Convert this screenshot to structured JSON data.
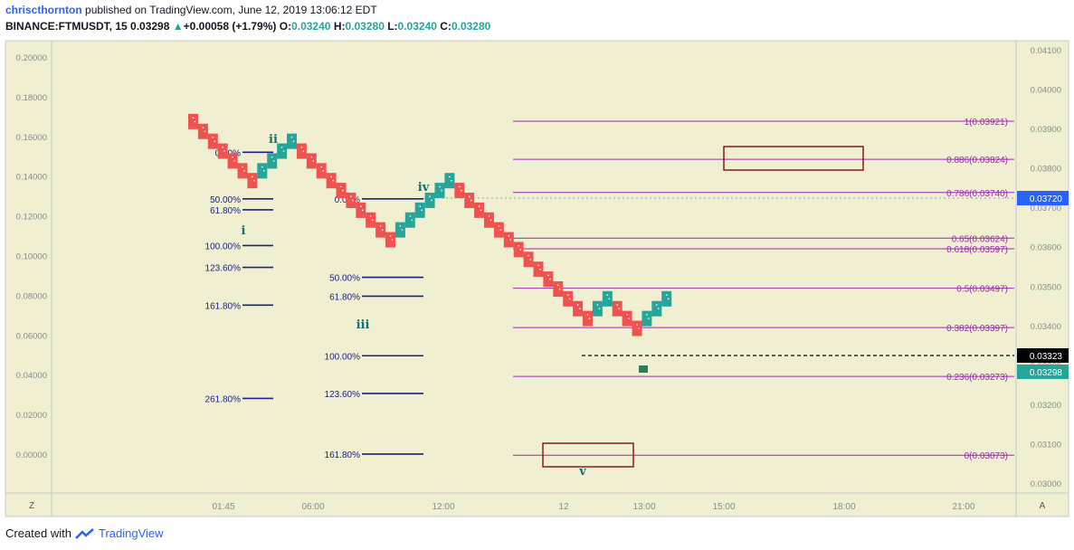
{
  "header": {
    "author": "chriscthornton",
    "published": "published on TradingView.com, June 12, 2019 13:06:12 EDT",
    "symbol": "BINANCE:FTMUSDT, 15",
    "last": "0.03298",
    "change": "+0.00058 (+1.79%)",
    "o_label": "O:",
    "o": "0.03240",
    "h_label": "H:",
    "h": "0.03280",
    "l_label": "L:",
    "l": "0.03240",
    "c_label": "C:",
    "c": "0.03280"
  },
  "footer": {
    "created_with": "Created with",
    "brand": "TradingView"
  },
  "colors": {
    "bg": "#f0efd2",
    "up": "#26a69a",
    "down": "#ef5350",
    "fib": "#9c27b0",
    "ind": "#1a237e",
    "box": "#8b1a1a",
    "wave": "#1b6e6e"
  },
  "chart_data": {
    "type": "renko",
    "symbol": "BINANCE:FTMUSDT",
    "interval": "15",
    "left_axis": {
      "ylim": [
        0.0,
        0.2
      ],
      "ticks": [
        "0.20000",
        "0.18000",
        "0.16000",
        "0.14000",
        "0.12000",
        "0.10000",
        "0.08000",
        "0.06000",
        "0.04000",
        "0.02000",
        "0.00000"
      ]
    },
    "right_axis": {
      "ylim": [
        0.03,
        0.041
      ],
      "ticks": [
        "0.04100",
        "0.04000",
        "0.03900",
        "0.03800",
        "0.03700",
        "0.03600",
        "0.03500",
        "0.03400",
        "0.03300",
        "0.03200",
        "0.03100",
        "0.03000"
      ]
    },
    "x_ticks": [
      "01:45",
      "06:00",
      "12:00",
      "12",
      "13:00",
      "15:00",
      "18:00",
      "21:00"
    ],
    "corner_labels": {
      "left": "Z",
      "right": "A"
    },
    "price_labels": [
      {
        "value": "0.03720",
        "color": "#2962ff"
      },
      {
        "value": "0.03323",
        "color": "#000000"
      },
      {
        "value": "0.03298",
        "color": "#26a69a"
      }
    ],
    "fib_levels": [
      {
        "label": "1(0.03921)",
        "price": 0.03921
      },
      {
        "label": "0.886(0.03824)",
        "price": 0.03824
      },
      {
        "label": "0.786(0.03740)",
        "price": 0.0374
      },
      {
        "label": "0.65(0.03624)",
        "price": 0.03624
      },
      {
        "label": "0.618(0.03597)",
        "price": 0.03597
      },
      {
        "label": "0.5(0.03497)",
        "price": 0.03497
      },
      {
        "label": "0.382(0.03397)",
        "price": 0.03397
      },
      {
        "label": "0.236(0.03273)",
        "price": 0.03273
      },
      {
        "label": "0(0.03073)",
        "price": 0.03073
      }
    ],
    "bricks": [
      {
        "d": "down",
        "p": 0.0392
      },
      {
        "d": "down",
        "p": 0.03895
      },
      {
        "d": "down",
        "p": 0.0387
      },
      {
        "d": "down",
        "p": 0.03845
      },
      {
        "d": "down",
        "p": 0.0382
      },
      {
        "d": "down",
        "p": 0.03795
      },
      {
        "d": "down",
        "p": 0.0377
      },
      {
        "d": "up",
        "p": 0.03795
      },
      {
        "d": "up",
        "p": 0.0382
      },
      {
        "d": "up",
        "p": 0.03845
      },
      {
        "d": "up",
        "p": 0.0387
      },
      {
        "d": "down",
        "p": 0.03845
      },
      {
        "d": "down",
        "p": 0.0382
      },
      {
        "d": "down",
        "p": 0.03795
      },
      {
        "d": "down",
        "p": 0.0377
      },
      {
        "d": "down",
        "p": 0.03745
      },
      {
        "d": "down",
        "p": 0.0372
      },
      {
        "d": "down",
        "p": 0.03695
      },
      {
        "d": "down",
        "p": 0.0367
      },
      {
        "d": "down",
        "p": 0.03645
      },
      {
        "d": "down",
        "p": 0.0362
      },
      {
        "d": "up",
        "p": 0.03645
      },
      {
        "d": "up",
        "p": 0.0367
      },
      {
        "d": "up",
        "p": 0.03695
      },
      {
        "d": "up",
        "p": 0.0372
      },
      {
        "d": "up",
        "p": 0.03745
      },
      {
        "d": "up",
        "p": 0.0377
      },
      {
        "d": "down",
        "p": 0.03745
      },
      {
        "d": "down",
        "p": 0.0372
      },
      {
        "d": "down",
        "p": 0.03695
      },
      {
        "d": "down",
        "p": 0.0367
      },
      {
        "d": "down",
        "p": 0.03645
      },
      {
        "d": "down",
        "p": 0.0362
      },
      {
        "d": "down",
        "p": 0.03595
      },
      {
        "d": "down",
        "p": 0.0357
      },
      {
        "d": "down",
        "p": 0.03545
      },
      {
        "d": "down",
        "p": 0.0352
      },
      {
        "d": "down",
        "p": 0.03495
      },
      {
        "d": "down",
        "p": 0.0347
      },
      {
        "d": "down",
        "p": 0.03445
      },
      {
        "d": "down",
        "p": 0.0342
      },
      {
        "d": "up",
        "p": 0.03445
      },
      {
        "d": "up",
        "p": 0.0347
      },
      {
        "d": "down",
        "p": 0.03445
      },
      {
        "d": "down",
        "p": 0.0342
      },
      {
        "d": "down",
        "p": 0.03395
      },
      {
        "d": "up",
        "p": 0.0342
      },
      {
        "d": "up",
        "p": 0.03445
      },
      {
        "d": "up",
        "p": 0.0347
      }
    ],
    "left_fib_sets": [
      {
        "labels": [
          "0.00%",
          "50.00%",
          "61.80%",
          "100.00%",
          "123.60%",
          "161.80%",
          "261.80%"
        ],
        "values": [
          0.1525,
          0.129,
          0.1235,
          0.1055,
          0.0945,
          0.0755,
          0.0285
        ]
      },
      {
        "labels": [
          "0.00%",
          "50.00%",
          "61.80%",
          "100.00%",
          "123.60%",
          "161.80%"
        ],
        "values": [
          0.129,
          0.0895,
          0.08,
          0.05,
          0.031,
          0.0005
        ]
      }
    ],
    "wave_labels": [
      "i",
      "ii",
      "iii",
      "iv",
      "v"
    ],
    "series": []
  }
}
